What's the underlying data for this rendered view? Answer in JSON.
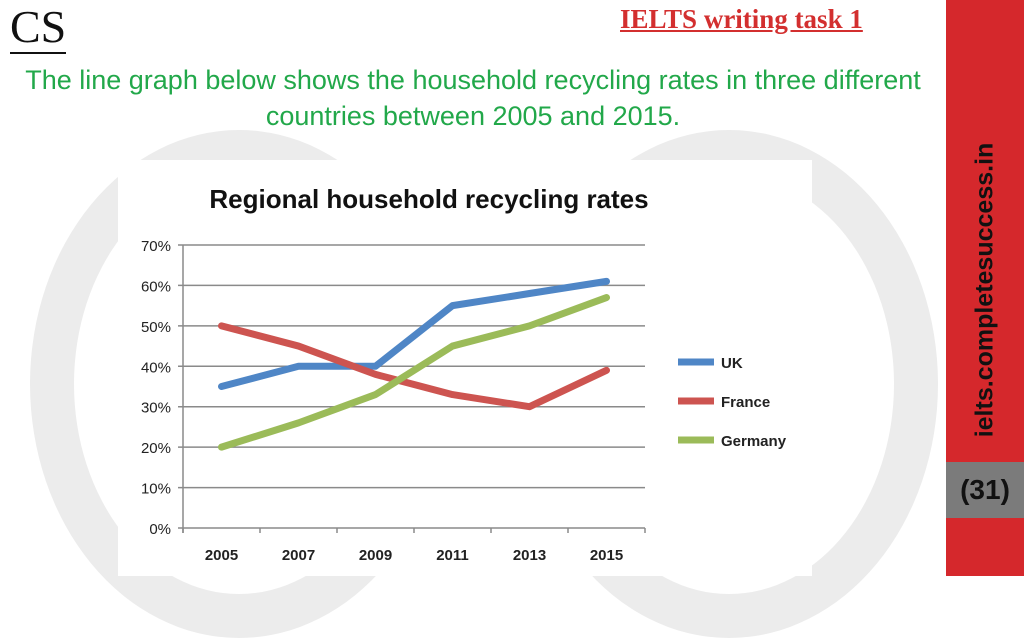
{
  "header": {
    "logo": "CS",
    "task": "IELTS writing task 1",
    "description": "The line graph below shows the household recycling rates in three different countries between 2005 and 2015."
  },
  "sidebar": {
    "site": "ielts.completesuccess.in",
    "page": "(31)"
  },
  "colors": {
    "UK": "#4f86c6",
    "France": "#cd5450",
    "Germany": "#9bbb59"
  },
  "chart_data": {
    "type": "line",
    "title": "Regional household recycling rates",
    "categories": [
      "2005",
      "2007",
      "2009",
      "2011",
      "2013",
      "2015"
    ],
    "yticks": [
      "0%",
      "10%",
      "20%",
      "30%",
      "40%",
      "50%",
      "60%",
      "70%"
    ],
    "ylim": [
      0,
      70
    ],
    "xlabel": "",
    "ylabel": "",
    "legend_position": "right",
    "series": [
      {
        "name": "UK",
        "values": [
          35,
          40,
          40,
          55,
          58,
          61
        ]
      },
      {
        "name": "France",
        "values": [
          50,
          45,
          38,
          33,
          30,
          39
        ]
      },
      {
        "name": "Germany",
        "values": [
          20,
          26,
          33,
          45,
          50,
          57
        ]
      }
    ]
  }
}
